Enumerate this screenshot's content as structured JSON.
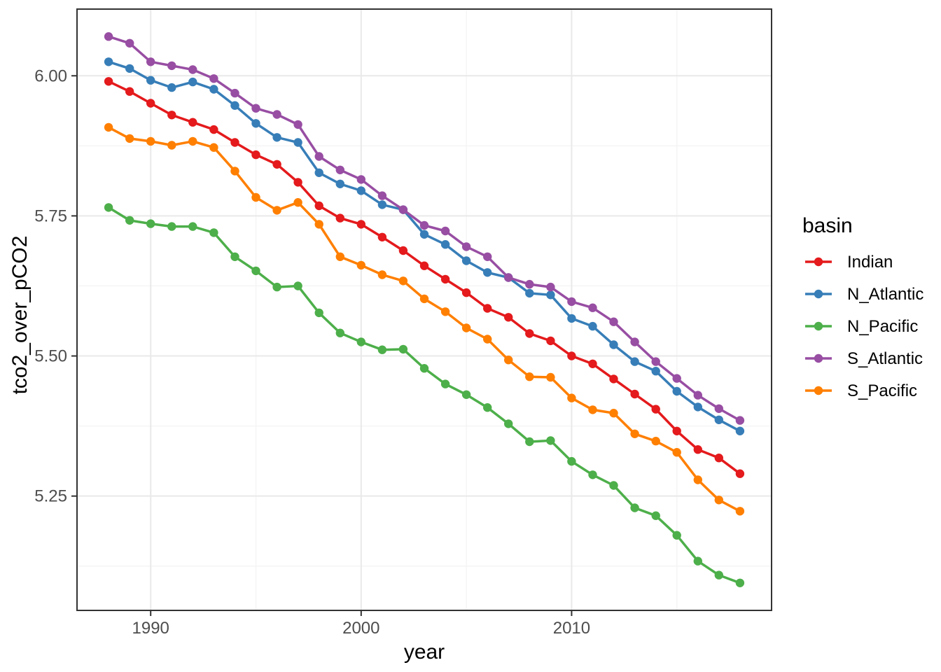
{
  "chart_data": {
    "type": "line",
    "title": "",
    "xlabel": "year",
    "ylabel": "tco2_over_pCO2",
    "legend_title": "basin",
    "legend_position": "right",
    "grid": true,
    "x": [
      1988,
      1989,
      1990,
      1991,
      1992,
      1993,
      1994,
      1995,
      1996,
      1997,
      1998,
      1999,
      2000,
      2001,
      2002,
      2003,
      2004,
      2005,
      2006,
      2007,
      2008,
      2009,
      2010,
      2011,
      2012,
      2013,
      2014,
      2015,
      2016,
      2017,
      2018
    ],
    "series": [
      {
        "name": "Indian",
        "color": "#e41a1c",
        "values": [
          5.99,
          5.972,
          5.951,
          5.93,
          5.917,
          5.904,
          5.881,
          5.859,
          5.842,
          5.81,
          5.768,
          5.746,
          5.735,
          5.712,
          5.688,
          5.661,
          5.637,
          5.613,
          5.585,
          5.569,
          5.54,
          5.527,
          5.5,
          5.486,
          5.459,
          5.432,
          5.405,
          5.366,
          5.333,
          5.318,
          5.29
        ]
      },
      {
        "name": "N_Atlantic",
        "color": "#377eb8",
        "values": [
          6.025,
          6.013,
          5.992,
          5.979,
          5.989,
          5.976,
          5.947,
          5.915,
          5.89,
          5.881,
          5.827,
          5.807,
          5.795,
          5.77,
          5.761,
          5.717,
          5.699,
          5.67,
          5.649,
          5.64,
          5.612,
          5.609,
          5.567,
          5.553,
          5.52,
          5.49,
          5.473,
          5.437,
          5.409,
          5.386,
          5.366
        ]
      },
      {
        "name": "N_Pacific",
        "color": "#4daf4a",
        "values": [
          5.765,
          5.742,
          5.736,
          5.731,
          5.731,
          5.72,
          5.677,
          5.652,
          5.623,
          5.625,
          5.577,
          5.541,
          5.525,
          5.511,
          5.512,
          5.478,
          5.45,
          5.431,
          5.408,
          5.379,
          5.347,
          5.349,
          5.312,
          5.288,
          5.269,
          5.229,
          5.215,
          5.18,
          5.134,
          5.109,
          5.095
        ]
      },
      {
        "name": "S_Atlantic",
        "color": "#984ea3",
        "values": [
          6.07,
          6.058,
          6.025,
          6.018,
          6.011,
          5.995,
          5.969,
          5.942,
          5.931,
          5.913,
          5.856,
          5.832,
          5.815,
          5.786,
          5.761,
          5.733,
          5.723,
          5.695,
          5.677,
          5.64,
          5.628,
          5.623,
          5.597,
          5.586,
          5.561,
          5.525,
          5.49,
          5.46,
          5.43,
          5.406,
          5.385
        ]
      },
      {
        "name": "S_Pacific",
        "color": "#ff7f00",
        "values": [
          5.908,
          5.888,
          5.883,
          5.876,
          5.883,
          5.872,
          5.83,
          5.783,
          5.76,
          5.774,
          5.735,
          5.677,
          5.662,
          5.645,
          5.634,
          5.602,
          5.579,
          5.55,
          5.53,
          5.493,
          5.463,
          5.462,
          5.425,
          5.404,
          5.398,
          5.361,
          5.348,
          5.328,
          5.279,
          5.243,
          5.223
        ]
      }
    ],
    "x_ticks": [
      1990,
      2000,
      2010
    ],
    "x_tick_labels": [
      "1990",
      "2000",
      "2010"
    ],
    "x_minor": [
      1995,
      2005,
      2015
    ],
    "y_ticks": [
      6.0,
      5.75,
      5.5,
      5.25
    ],
    "y_tick_labels": [
      "6.00",
      "5.75",
      "5.50",
      "5.25"
    ],
    "y_minor": [
      5.875,
      5.625,
      5.375,
      5.125
    ],
    "xlim": [
      1986.5,
      2019.5
    ],
    "ylim": [
      5.046,
      6.119
    ],
    "style": {
      "panel_border_color": "#333333",
      "grid_major_color": "#e9e9e9",
      "grid_minor_color": "#f4f4f4",
      "tick_color": "#333333",
      "tick_label_color": "#4d4d4d",
      "axis_title_color": "#000000",
      "legend_text_color": "#000000",
      "background": "#ffffff"
    }
  }
}
